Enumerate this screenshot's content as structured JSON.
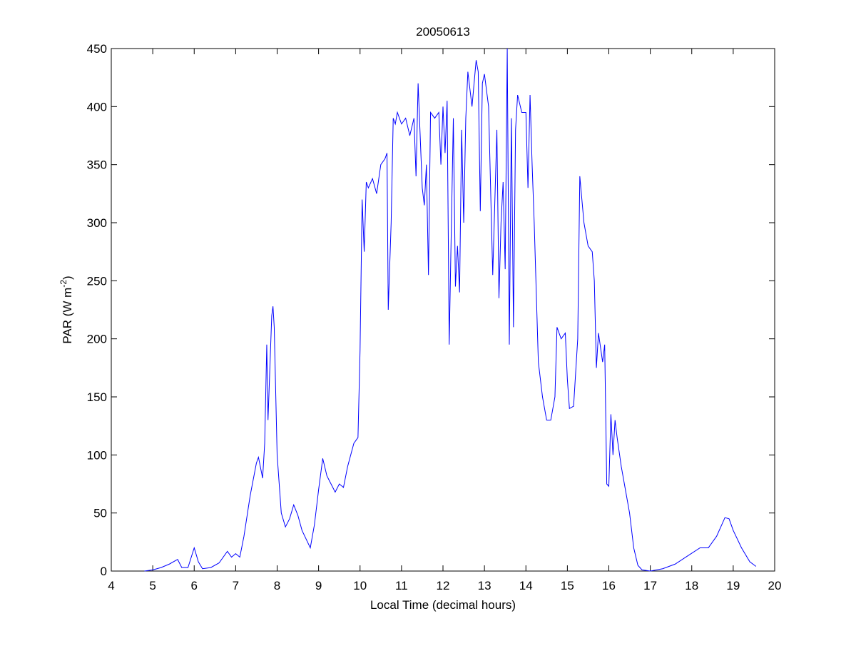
{
  "chart_data": {
    "type": "line",
    "title": "20050613",
    "xlabel": "Local Time (decimal hours)",
    "ylabel": {
      "text": "PAR (W m",
      "superscript": "-2",
      "suffix": ")"
    },
    "xlim": [
      4,
      20
    ],
    "xticks": [
      4,
      5,
      6,
      7,
      8,
      9,
      10,
      11,
      12,
      13,
      14,
      15,
      16,
      17,
      18,
      19,
      20
    ],
    "ylim": [
      0,
      450
    ],
    "yticks": [
      0,
      50,
      100,
      150,
      200,
      250,
      300,
      350,
      400,
      450
    ],
    "series": [
      {
        "color": "#0000ff",
        "x": [
          4.8,
          5.0,
          5.2,
          5.4,
          5.6,
          5.7,
          5.85,
          6.0,
          6.1,
          6.2,
          6.4,
          6.6,
          6.8,
          6.9,
          7.0,
          7.1,
          7.2,
          7.35,
          7.5,
          7.55,
          7.65,
          7.7,
          7.75,
          7.78,
          7.82,
          7.87,
          7.9,
          7.93,
          8.0,
          8.1,
          8.2,
          8.3,
          8.4,
          8.5,
          8.6,
          8.8,
          8.9,
          9.0,
          9.1,
          9.2,
          9.3,
          9.4,
          9.5,
          9.6,
          9.7,
          9.85,
          9.95,
          10.0,
          10.05,
          10.1,
          10.15,
          10.2,
          10.3,
          10.4,
          10.5,
          10.6,
          10.65,
          10.68,
          10.75,
          10.8,
          10.85,
          10.9,
          11.0,
          11.1,
          11.2,
          11.3,
          11.35,
          11.4,
          11.5,
          11.55,
          11.6,
          11.65,
          11.7,
          11.8,
          11.9,
          11.95,
          12.0,
          12.05,
          12.1,
          12.15,
          12.25,
          12.3,
          12.35,
          12.4,
          12.45,
          12.5,
          12.55,
          12.6,
          12.7,
          12.8,
          12.85,
          12.9,
          12.95,
          13.0,
          13.1,
          13.2,
          13.3,
          13.35,
          13.4,
          13.45,
          13.5,
          13.55,
          13.6,
          13.65,
          13.7,
          13.75,
          13.8,
          13.9,
          14.0,
          14.05,
          14.1,
          14.15,
          14.2,
          14.3,
          14.4,
          14.5,
          14.6,
          14.7,
          14.75,
          14.85,
          14.95,
          15.0,
          15.05,
          15.15,
          15.25,
          15.3,
          15.4,
          15.5,
          15.6,
          15.65,
          15.7,
          15.75,
          15.85,
          15.9,
          15.95,
          16.0,
          16.05,
          16.1,
          16.15,
          16.2,
          16.3,
          16.4,
          16.5,
          16.6,
          16.7,
          16.8,
          17.0,
          17.3,
          17.6,
          17.9,
          18.2,
          18.4,
          18.6,
          18.8,
          18.9,
          19.0,
          19.2,
          19.4,
          19.55
        ],
        "values": [
          0,
          1,
          3,
          6,
          10,
          3,
          3,
          20,
          8,
          2,
          3,
          7,
          17,
          12,
          15,
          12,
          30,
          65,
          93,
          98,
          80,
          110,
          195,
          130,
          170,
          220,
          228,
          210,
          100,
          50,
          38,
          45,
          57,
          48,
          35,
          20,
          40,
          70,
          97,
          82,
          75,
          68,
          75,
          72,
          90,
          110,
          115,
          190,
          320,
          275,
          335,
          330,
          338,
          325,
          350,
          355,
          360,
          225,
          300,
          390,
          385,
          395,
          385,
          390,
          375,
          390,
          340,
          420,
          330,
          315,
          350,
          255,
          395,
          390,
          395,
          350,
          400,
          360,
          405,
          195,
          390,
          245,
          280,
          240,
          380,
          300,
          390,
          430,
          400,
          440,
          430,
          310,
          420,
          428,
          400,
          255,
          380,
          235,
          300,
          335,
          260,
          450,
          195,
          390,
          210,
          380,
          410,
          395,
          395,
          330,
          410,
          350,
          300,
          180,
          150,
          130,
          130,
          150,
          210,
          200,
          205,
          165,
          140,
          142,
          200,
          340,
          300,
          280,
          275,
          250,
          175,
          205,
          180,
          195,
          75,
          73,
          135,
          100,
          130,
          115,
          90,
          70,
          50,
          20,
          5,
          1,
          0,
          2,
          6,
          13,
          20,
          20,
          30,
          46,
          45,
          35,
          20,
          8,
          4
        ]
      }
    ]
  }
}
